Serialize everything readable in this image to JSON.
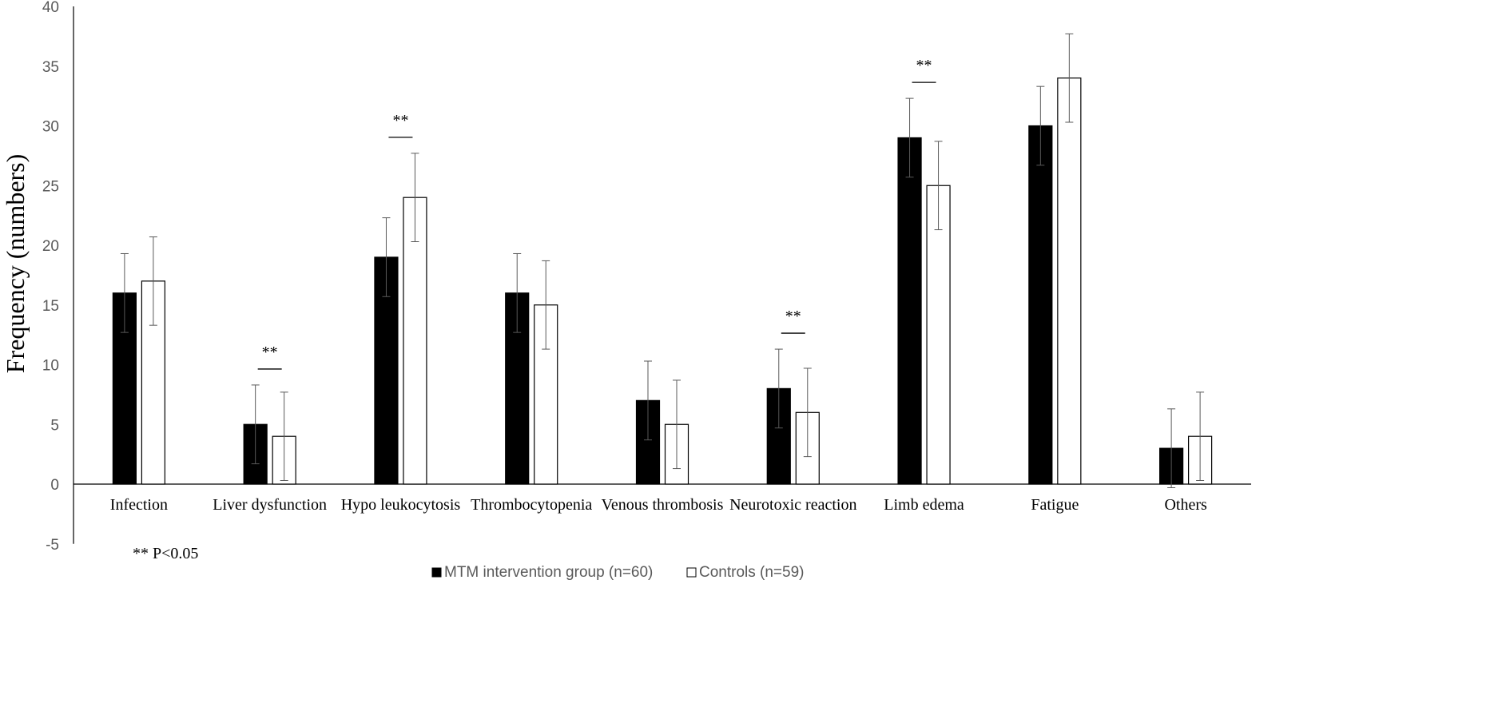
{
  "chart_data": {
    "type": "bar",
    "ylabel": "Frequency (numbers)",
    "ylim": [
      -5,
      40
    ],
    "yticks": [
      -5,
      0,
      5,
      10,
      15,
      20,
      25,
      30,
      35,
      40
    ],
    "categories": [
      "Infection",
      "Liver dysfunction",
      "Hypo leukocytosis",
      "Thrombocytopenia",
      "Venous thrombosis",
      "Neurotoxic reaction",
      "Limb edema",
      "Fatigue",
      "Others"
    ],
    "series": [
      {
        "name": "MTM intervention group (n=60)",
        "color": "#000000",
        "values": [
          16,
          5,
          19,
          16,
          7,
          8,
          29,
          30,
          3
        ],
        "error": [
          3.3,
          3.3,
          3.3,
          3.3,
          3.3,
          3.3,
          3.3,
          3.3,
          3.3
        ]
      },
      {
        "name": "Controls (n=59)",
        "color": "#ffffff",
        "values": [
          17,
          4,
          24,
          15,
          5,
          6,
          25,
          34,
          4
        ],
        "error": [
          3.7,
          3.7,
          3.7,
          3.7,
          3.7,
          3.7,
          3.7,
          3.7,
          3.7
        ]
      }
    ],
    "significance": [
      {
        "category": "Liver dysfunction",
        "label": "**"
      },
      {
        "category": "Hypo leukocytosis",
        "label": "**"
      },
      {
        "category": "Neurotoxic reaction",
        "label": "**"
      },
      {
        "category": "Limb edema",
        "label": "**"
      }
    ],
    "footnote": "** P<0.05",
    "legend_position": "bottom-center",
    "grid": false
  }
}
